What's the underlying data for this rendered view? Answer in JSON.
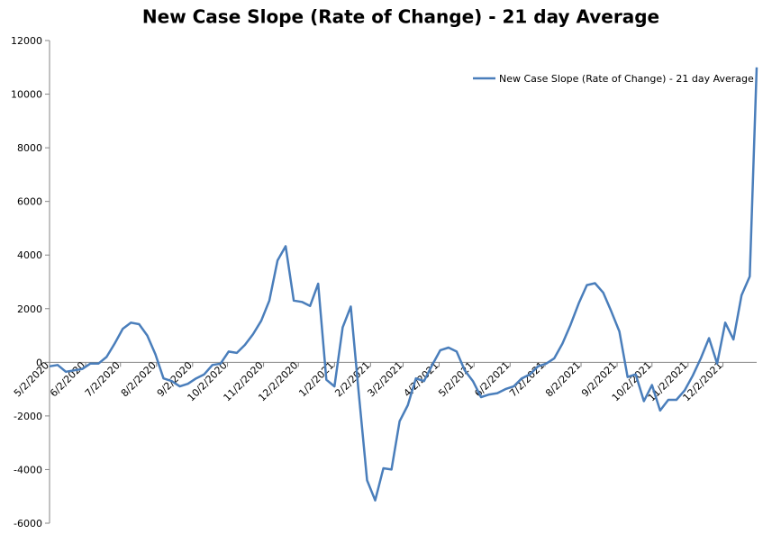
{
  "chart_data": {
    "type": "line",
    "title": "New Case Slope (Rate of Change) - 21 day Average",
    "x": [
      "2020-05-02",
      "2020-05-09",
      "2020-05-16",
      "2020-05-23",
      "2020-05-30",
      "2020-06-06",
      "2020-06-13",
      "2020-06-20",
      "2020-06-27",
      "2020-07-04",
      "2020-07-11",
      "2020-07-18",
      "2020-07-25",
      "2020-08-01",
      "2020-08-08",
      "2020-08-15",
      "2020-08-22",
      "2020-08-29",
      "2020-09-05",
      "2020-09-12",
      "2020-09-19",
      "2020-09-26",
      "2020-10-03",
      "2020-10-10",
      "2020-10-17",
      "2020-10-24",
      "2020-10-31",
      "2020-11-07",
      "2020-11-14",
      "2020-11-21",
      "2020-11-28",
      "2020-12-05",
      "2020-12-12",
      "2020-12-19",
      "2020-12-26",
      "2021-01-02",
      "2021-01-09",
      "2021-01-16",
      "2021-01-23",
      "2021-01-30",
      "2021-02-06",
      "2021-02-13",
      "2021-02-20",
      "2021-02-27",
      "2021-03-06",
      "2021-03-13",
      "2021-03-20",
      "2021-03-27",
      "2021-04-03",
      "2021-04-10",
      "2021-04-17",
      "2021-04-24",
      "2021-05-01",
      "2021-05-08",
      "2021-05-15",
      "2021-05-22",
      "2021-05-29",
      "2021-06-05",
      "2021-06-12",
      "2021-06-19",
      "2021-06-26",
      "2021-07-03",
      "2021-07-10",
      "2021-07-17",
      "2021-07-24",
      "2021-07-31",
      "2021-08-07",
      "2021-08-14",
      "2021-08-21",
      "2021-08-28",
      "2021-09-04",
      "2021-09-11",
      "2021-09-18",
      "2021-09-25",
      "2021-10-02",
      "2021-10-09",
      "2021-10-16",
      "2021-10-23",
      "2021-10-30",
      "2021-11-06",
      "2021-11-13",
      "2021-11-20",
      "2021-11-27",
      "2021-12-04",
      "2021-12-11",
      "2021-12-18",
      "2021-12-25",
      "2021-12-31"
    ],
    "series": [
      {
        "name": "New Case Slope (Rate of Change) - 21 day Average",
        "color": "#4a7ebb",
        "values": [
          -150,
          -100,
          -350,
          -300,
          -250,
          -50,
          -50,
          200,
          700,
          1250,
          1480,
          1420,
          1000,
          300,
          -600,
          -700,
          -900,
          -800,
          -600,
          -450,
          -100,
          -50,
          400,
          350,
          650,
          1050,
          1550,
          2300,
          3800,
          4330,
          2300,
          2250,
          2100,
          2930,
          -650,
          -900,
          1300,
          2080,
          -1200,
          -4400,
          -5150,
          -3950,
          -4000,
          -2200,
          -1600,
          -600,
          -700,
          -100,
          450,
          550,
          400,
          -300,
          -700,
          -1300,
          -1200,
          -1150,
          -1000,
          -900,
          -600,
          -450,
          -150,
          -50,
          150,
          700,
          1400,
          2200,
          2880,
          2950,
          2600,
          1900,
          1150,
          -550,
          -450,
          -1450,
          -850,
          -1800,
          -1400,
          -1400,
          -1050,
          -500,
          150,
          900,
          -50,
          1480,
          850,
          2500,
          3200,
          11000
        ]
      }
    ],
    "xlim": [
      "2020-05-02",
      "2021-12-31"
    ],
    "xticks": [
      {
        "value": "2020-05-02",
        "label": "5/2/2020"
      },
      {
        "value": "2020-06-02",
        "label": "6/2/2020"
      },
      {
        "value": "2020-07-02",
        "label": "7/2/2020"
      },
      {
        "value": "2020-08-02",
        "label": "8/2/2020"
      },
      {
        "value": "2020-09-02",
        "label": "9/2/2020"
      },
      {
        "value": "2020-10-02",
        "label": "10/2/2020"
      },
      {
        "value": "2020-11-02",
        "label": "11/2/2020"
      },
      {
        "value": "2020-12-02",
        "label": "12/2/2020"
      },
      {
        "value": "2021-01-02",
        "label": "1/2/2021"
      },
      {
        "value": "2021-02-02",
        "label": "2/2/2021"
      },
      {
        "value": "2021-03-02",
        "label": "3/2/2021"
      },
      {
        "value": "2021-04-02",
        "label": "4/2/2021"
      },
      {
        "value": "2021-05-02",
        "label": "5/2/2021"
      },
      {
        "value": "2021-06-02",
        "label": "6/2/2021"
      },
      {
        "value": "2021-07-02",
        "label": "7/2/2021"
      },
      {
        "value": "2021-08-02",
        "label": "8/2/2021"
      },
      {
        "value": "2021-09-02",
        "label": "9/2/2021"
      },
      {
        "value": "2021-10-02",
        "label": "10/2/2021"
      },
      {
        "value": "2021-11-02",
        "label": "11/2/2021"
      },
      {
        "value": "2021-12-02",
        "label": "12/2/2021"
      }
    ],
    "ylim": [
      -6000,
      12000
    ],
    "yticks": [
      -6000,
      -4000,
      -2000,
      0,
      2000,
      4000,
      6000,
      8000,
      10000,
      12000
    ],
    "legend": "top-right",
    "grid": false
  }
}
